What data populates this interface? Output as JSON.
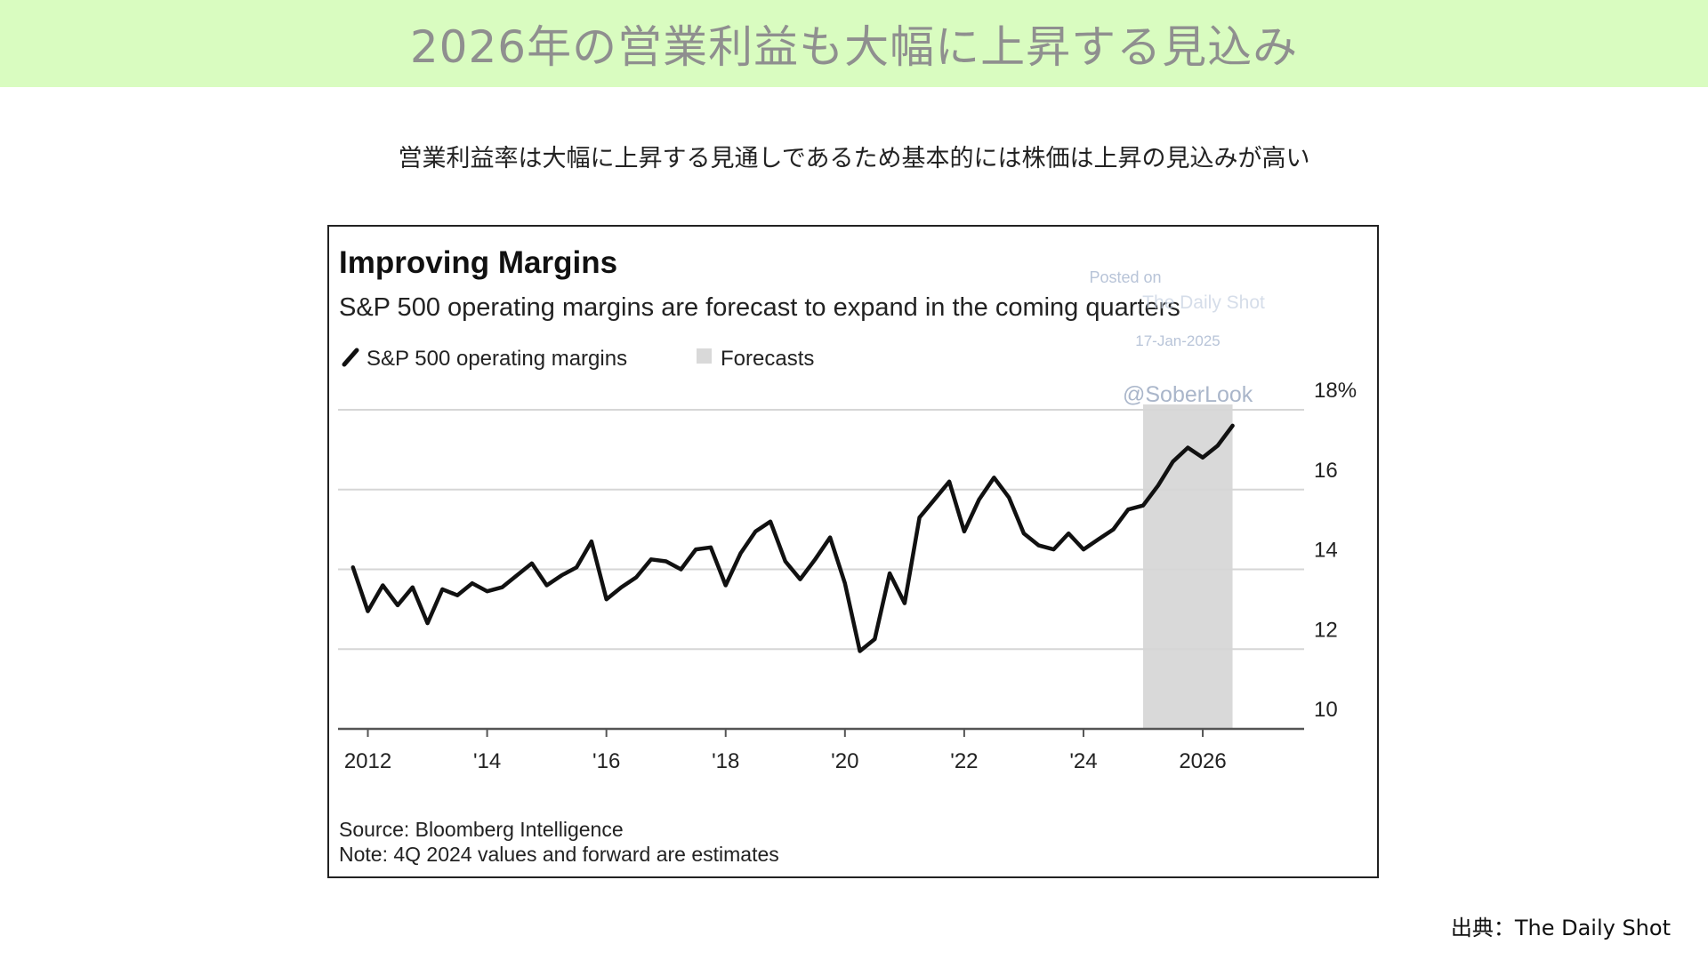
{
  "page": {
    "heading": "2026年の営業利益も大幅に上昇する見込み",
    "subtitle": "営業利益率は大幅に上昇する見通しであるため基本的には株価は上昇の見込みが高い",
    "source_credit": "出典：The Daily Shot"
  },
  "watermark": {
    "line1": "Posted on",
    "line2": "The Daily Shot",
    "line3": "17-Jan-2025",
    "handle": "@SoberLook"
  },
  "colors": {
    "banner_bg": "#d9fcc0",
    "heading_text": "#8f8f8f",
    "series_line": "#111111",
    "forecast_shade": "#d9d9d9",
    "gridline": "#d6d6d6",
    "watermark_text": "#b8c4d8"
  },
  "chart_data": {
    "type": "line",
    "title": "Improving Margins",
    "subtitle": "S&P 500 operating margins are forecast to expand in the coming quarters",
    "legend": [
      {
        "label": "S&P 500 operating margins",
        "marker": "line"
      },
      {
        "label": "Forecasts",
        "marker": "shade"
      }
    ],
    "legend_placement": "top-left",
    "x_ticks": [
      "2012",
      "'14",
      "'16",
      "'18",
      "'20",
      "'22",
      "'24",
      "2026"
    ],
    "x_tick_years": [
      2012,
      2014,
      2016,
      2018,
      2020,
      2022,
      2024,
      2026
    ],
    "xlim": [
      2011.5,
      2027.7
    ],
    "y_ticks": [
      "10",
      "12",
      "14",
      "16",
      "18%"
    ],
    "y_tick_values": [
      10,
      12,
      14,
      16,
      18
    ],
    "ylim": [
      10,
      18
    ],
    "y_axis_side": "right",
    "grid": true,
    "forecast_range": [
      2025.0,
      2026.5
    ],
    "series": [
      {
        "name": "S&P 500 operating margins",
        "x": [
          2011.75,
          2012.0,
          2012.25,
          2012.5,
          2012.75,
          2013.0,
          2013.25,
          2013.5,
          2013.75,
          2014.0,
          2014.25,
          2014.5,
          2014.75,
          2015.0,
          2015.25,
          2015.5,
          2015.75,
          2016.0,
          2016.25,
          2016.5,
          2016.75,
          2017.0,
          2017.25,
          2017.5,
          2017.75,
          2018.0,
          2018.25,
          2018.5,
          2018.75,
          2019.0,
          2019.25,
          2019.5,
          2019.75,
          2020.0,
          2020.25,
          2020.5,
          2020.75,
          2021.0,
          2021.25,
          2021.5,
          2021.75,
          2022.0,
          2022.25,
          2022.5,
          2022.75,
          2023.0,
          2023.25,
          2023.5,
          2023.75,
          2024.0,
          2024.25,
          2024.5,
          2024.75,
          2025.0,
          2025.25,
          2025.5,
          2025.75,
          2026.0,
          2026.25,
          2026.5
        ],
        "y": [
          14.05,
          12.95,
          13.6,
          13.1,
          13.55,
          12.65,
          13.5,
          13.35,
          13.65,
          13.45,
          13.55,
          13.85,
          14.15,
          13.6,
          13.85,
          14.05,
          14.7,
          13.25,
          13.55,
          13.8,
          14.25,
          14.2,
          14.0,
          14.5,
          14.55,
          13.6,
          14.4,
          14.95,
          15.2,
          14.2,
          13.75,
          14.25,
          14.8,
          13.65,
          11.95,
          12.25,
          13.9,
          13.15,
          15.3,
          15.75,
          16.2,
          14.95,
          15.75,
          16.3,
          15.8,
          14.9,
          14.6,
          14.5,
          14.9,
          14.5,
          14.75,
          15.0,
          15.5,
          15.6,
          16.1,
          16.7,
          17.05,
          16.8,
          17.1,
          17.6
        ]
      }
    ],
    "source": "Source: Bloomberg Intelligence",
    "note": "Note: 4Q 2024 values and forward are estimates"
  }
}
